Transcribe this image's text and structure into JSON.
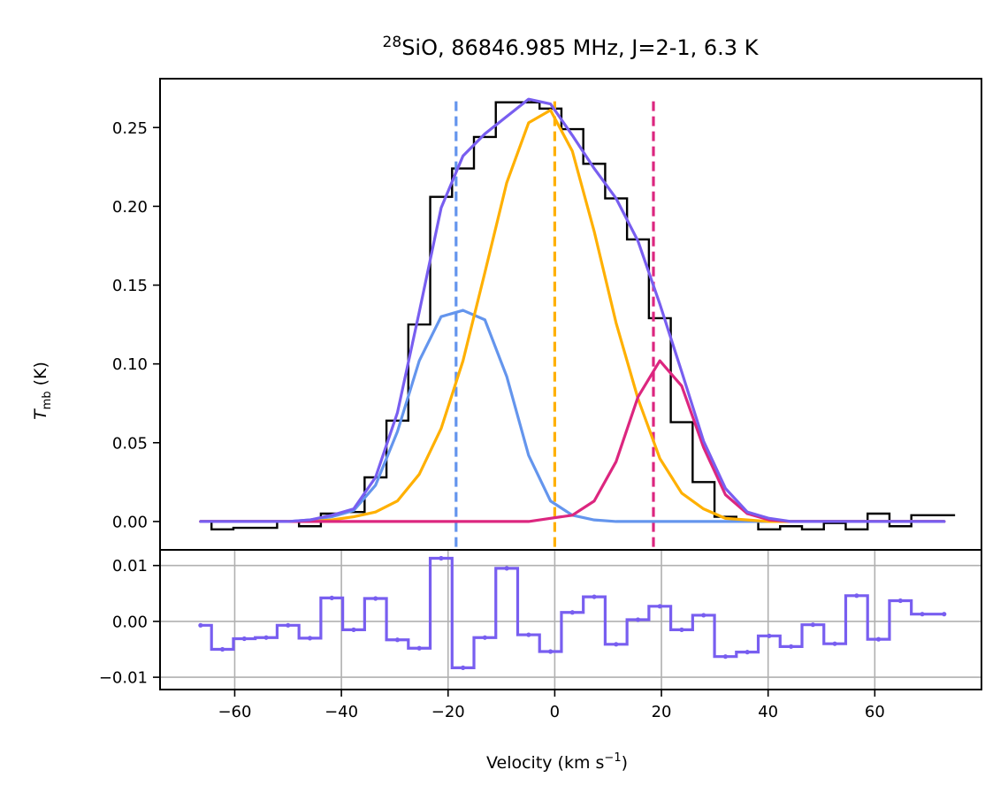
{
  "chart_data": [
    {
      "type": "line",
      "title_main": "SiO, 86846.985 MHz, J=2-1, 6.3 K",
      "title_sup": "28",
      "ylabel_main": "T",
      "ylabel_sub": "mb",
      "ylabel_unit": " (K)",
      "xlim": [
        -74,
        80
      ],
      "ylim": [
        -0.018,
        0.281
      ],
      "yticks": [
        0.0,
        0.05,
        0.1,
        0.15,
        0.2,
        0.25
      ],
      "ytick_labels": [
        "0.00",
        "0.05",
        "0.10",
        "0.15",
        "0.20",
        "0.25"
      ],
      "grid": false,
      "observed_step": {
        "name": "observed spectrum",
        "color": "#000000",
        "x": [
          -66.4,
          -62.3,
          -58.2,
          -54.1,
          -50.0,
          -45.9,
          -41.8,
          -37.7,
          -33.6,
          -29.5,
          -25.4,
          -21.3,
          -17.2,
          -13.1,
          -9.0,
          -4.9,
          -0.8,
          3.3,
          7.4,
          11.5,
          15.6,
          19.7,
          23.8,
          27.9,
          32.0,
          36.1,
          40.2,
          44.3,
          48.4,
          52.5,
          56.6,
          60.7,
          64.8,
          68.9,
          73.0
        ],
        "y": [
          0.0,
          -0.005,
          -0.004,
          -0.004,
          0.0,
          -0.003,
          0.005,
          0.006,
          0.028,
          0.064,
          0.125,
          0.206,
          0.224,
          0.244,
          0.266,
          0.266,
          0.262,
          0.249,
          0.227,
          0.205,
          0.179,
          0.129,
          0.063,
          0.025,
          0.003,
          0.0,
          -0.005,
          -0.003,
          -0.005,
          -0.001,
          -0.005,
          0.005,
          -0.003,
          0.004,
          0.004
        ]
      },
      "model_x": [
        -66.4,
        -62.3,
        -58.2,
        -54.1,
        -50.0,
        -45.9,
        -41.8,
        -37.7,
        -33.6,
        -29.5,
        -25.4,
        -21.3,
        -17.2,
        -13.1,
        -9.0,
        -4.9,
        -0.8,
        3.3,
        7.4,
        11.5,
        15.6,
        19.7,
        23.8,
        27.9,
        32.0,
        36.1,
        40.2,
        44.3,
        48.4,
        52.5,
        56.6,
        60.7,
        64.8,
        68.9,
        73.0
      ],
      "series": [
        {
          "name": "blue component",
          "color": "#6495ed",
          "y": [
            0.0,
            0.0,
            0.0,
            0.0,
            0.0,
            0.001,
            0.003,
            0.007,
            0.023,
            0.057,
            0.102,
            0.13,
            0.134,
            0.128,
            0.092,
            0.042,
            0.013,
            0.004,
            0.001,
            0.0,
            0.0,
            0.0,
            0.0,
            0.0,
            0.0,
            0.0,
            0.0,
            0.0,
            0.0,
            0.0,
            0.0,
            0.0,
            0.0,
            0.0,
            0.0
          ]
        },
        {
          "name": "central component",
          "color": "#ffb000",
          "y": [
            0.0,
            0.0,
            0.0,
            0.0,
            0.0,
            0.0,
            0.001,
            0.003,
            0.006,
            0.013,
            0.03,
            0.059,
            0.102,
            0.158,
            0.215,
            0.253,
            0.261,
            0.235,
            0.184,
            0.126,
            0.078,
            0.04,
            0.018,
            0.008,
            0.002,
            0.001,
            0.0,
            0.0,
            0.0,
            0.0,
            0.0,
            0.0,
            0.0,
            0.0,
            0.0
          ]
        },
        {
          "name": "red component",
          "color": "#dc267f",
          "y": [
            0.0,
            0.0,
            0.0,
            0.0,
            0.0,
            0.0,
            0.0,
            0.0,
            0.0,
            0.0,
            0.0,
            0.0,
            0.0,
            0.0,
            0.0,
            0.0,
            0.002,
            0.004,
            0.013,
            0.038,
            0.079,
            0.102,
            0.086,
            0.047,
            0.017,
            0.005,
            0.001,
            0.0,
            0.0,
            0.0,
            0.0,
            0.0,
            0.0,
            0.0,
            0.0
          ]
        },
        {
          "name": "total fit",
          "color": "#785ef0",
          "y": [
            0.0,
            0.0,
            0.0,
            0.0,
            0.0,
            0.001,
            0.004,
            0.008,
            0.028,
            0.069,
            0.133,
            0.199,
            0.232,
            0.246,
            0.257,
            0.268,
            0.265,
            0.245,
            0.224,
            0.205,
            0.178,
            0.138,
            0.095,
            0.051,
            0.021,
            0.006,
            0.002,
            0.0,
            0.0,
            0.0,
            0.0,
            0.0,
            0.0,
            0.0,
            0.0
          ]
        }
      ],
      "vlines": [
        {
          "name": "blue velocity",
          "x": -18.5,
          "color": "#6495ed"
        },
        {
          "name": "central velocity",
          "x": 0.0,
          "color": "#ffb000"
        },
        {
          "name": "red velocity",
          "x": 18.5,
          "color": "#dc267f"
        }
      ],
      "vline_ymax": 0.267
    },
    {
      "type": "line",
      "xlabel_main": "Velocity (km s",
      "xlabel_sup": "−1",
      "xlabel_close": ")",
      "xlim": [
        -74,
        80
      ],
      "ylim": [
        -0.0122,
        0.0128
      ],
      "yticks": [
        -0.01,
        0.0,
        0.01
      ],
      "ytick_labels": [
        "−0.01",
        "0.00",
        "0.01"
      ],
      "xticks": [
        -60,
        -40,
        -20,
        0,
        20,
        40,
        60
      ],
      "xtick_labels": [
        "−60",
        "−40",
        "−20",
        "0",
        "20",
        "40",
        "60"
      ],
      "grid": true,
      "residual": {
        "name": "residual",
        "color": "#785ef0",
        "x": [
          -66.4,
          -62.3,
          -58.2,
          -54.1,
          -50.0,
          -45.9,
          -41.8,
          -37.7,
          -33.6,
          -29.5,
          -25.4,
          -21.3,
          -17.2,
          -13.1,
          -9.0,
          -4.9,
          -0.8,
          3.3,
          7.4,
          11.5,
          15.6,
          19.7,
          23.8,
          27.9,
          32.0,
          36.1,
          40.2,
          44.3,
          48.4,
          52.5,
          56.6,
          60.7,
          64.8,
          68.9,
          73.0
        ],
        "y": [
          -0.0007,
          -0.005,
          -0.0031,
          -0.0029,
          -0.0007,
          -0.003,
          0.0042,
          -0.0015,
          0.0041,
          -0.0033,
          -0.0048,
          0.0113,
          -0.0083,
          -0.0029,
          0.0095,
          -0.0024,
          -0.0054,
          0.0016,
          0.0044,
          -0.0041,
          0.0003,
          0.0027,
          -0.0015,
          0.0011,
          -0.0063,
          -0.0055,
          -0.0026,
          -0.0045,
          -0.0006,
          -0.004,
          0.0046,
          -0.0032,
          0.0037,
          0.0013,
          0.0013
        ]
      }
    }
  ]
}
